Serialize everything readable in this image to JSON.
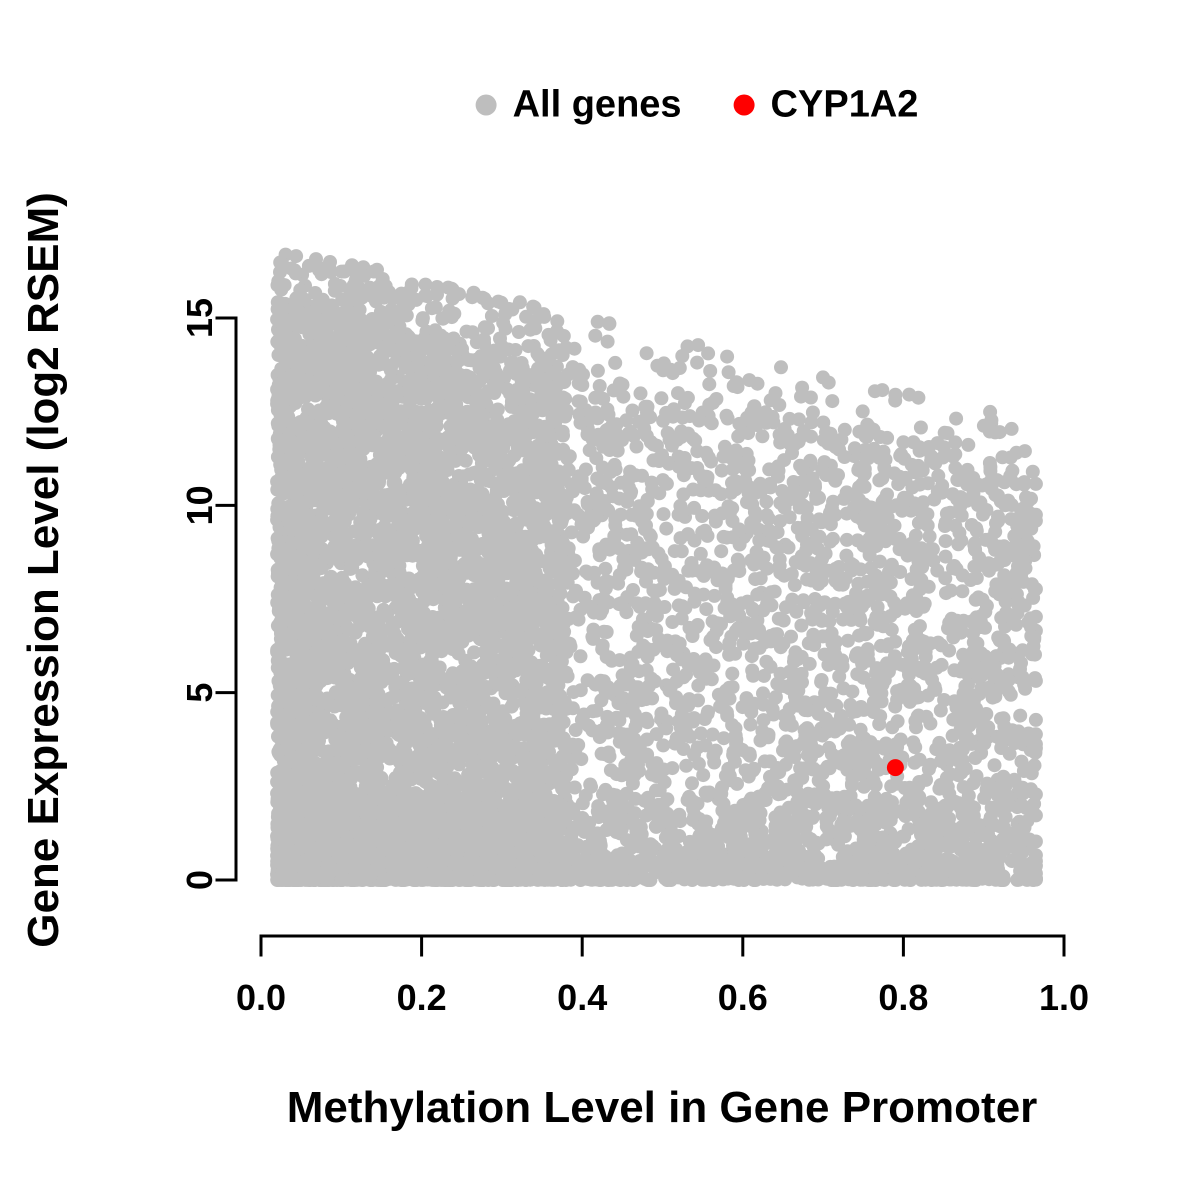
{
  "figure": {
    "background": "#FFFFFF"
  },
  "chart_data": {
    "type": "scatter",
    "title": "",
    "xlabel": "Methylation Level in Gene Promoter",
    "ylabel": "Gene Expression Level (log2 RSEM)",
    "xlim": [
      0.0,
      1.0
    ],
    "ylim": [
      0,
      16.6
    ],
    "grid": false,
    "legend_position": "top-center",
    "x_ticks": [
      {
        "value": 0.0,
        "label": "0.0"
      },
      {
        "value": 0.2,
        "label": "0.2"
      },
      {
        "value": 0.4,
        "label": "0.4"
      },
      {
        "value": 0.6,
        "label": "0.6"
      },
      {
        "value": 0.8,
        "label": "0.8"
      },
      {
        "value": 1.0,
        "label": "1.0"
      }
    ],
    "y_ticks": [
      {
        "value": 0,
        "label": "0"
      },
      {
        "value": 5,
        "label": "5"
      },
      {
        "value": 10,
        "label": "10"
      },
      {
        "value": 15,
        "label": "15"
      }
    ],
    "series": [
      {
        "name": "All genes",
        "color": "#BEBEBE",
        "marker": "filled-circle",
        "x_range": [
          0.02,
          0.97
        ],
        "y_range": [
          0,
          16.6
        ],
        "description": "Dense cloud of thousands of genes forming a triangular mass: at low promoter methylation expression spans 0 to ~16.5; the upper envelope of expression declines roughly linearly to ~11.5-12 at methylation ~0.95; heavy mass of points near zero expression at all methylation levels; sparse scattered points above the envelope."
      },
      {
        "name": "CYP1A2",
        "color": "#FF0000",
        "marker": "filled-circle",
        "points": [
          [
            0.79,
            3.0
          ]
        ]
      }
    ]
  },
  "render": {
    "seed": 20240711,
    "n_points": 8800,
    "point_radius": 7,
    "cyp1a2_radius": 8.5,
    "envelope_top": 16.4,
    "envelope_slope": -4.9
  }
}
